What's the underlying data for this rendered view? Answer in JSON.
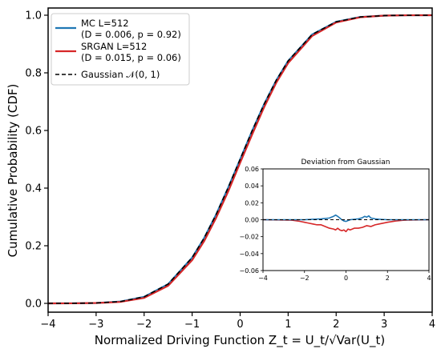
{
  "chart_data": [
    {
      "type": "line",
      "xlabel": "Normalized Driving Function Z_t = U_t/√Var(U_t)",
      "ylabel": "Cumulative Probability (CDF)",
      "xlim": [
        -4,
        4
      ],
      "ylim": [
        0.0,
        1.0
      ],
      "xticks": [
        -4,
        -3,
        -2,
        -1,
        0,
        1,
        2,
        3,
        4
      ],
      "yticks": [
        0.0,
        0.2,
        0.4,
        0.6,
        0.8,
        1.0
      ],
      "legend": {
        "location": "upper left",
        "entries": [
          {
            "line1": "MC L=512",
            "line2": "(D = 0.006, p = 0.92)",
            "color": "#1f77b4",
            "style": "solid"
          },
          {
            "line1": "SRGAN L=512",
            "line2": "(D = 0.015, p = 0.06)",
            "color": "#d62728",
            "style": "solid"
          },
          {
            "line1": "Gaussian 𝒩(0, 1)",
            "line2": "",
            "color": "#000000",
            "style": "dashed"
          }
        ]
      },
      "series": [
        {
          "name": "MC L=512",
          "color": "#1f77b4",
          "x": [
            -4,
            -3.5,
            -3,
            -2.5,
            -2,
            -1.5,
            -1,
            -0.75,
            -0.5,
            -0.25,
            0,
            0.25,
            0.5,
            0.75,
            1,
            1.5,
            2,
            2.5,
            3,
            3.5,
            4
          ],
          "y": [
            0.0,
            0.0002,
            0.0013,
            0.0062,
            0.0228,
            0.0668,
            0.1587,
            0.2266,
            0.3085,
            0.4013,
            0.5,
            0.5987,
            0.6915,
            0.7734,
            0.8413,
            0.9332,
            0.9772,
            0.9938,
            0.9987,
            0.9998,
            1.0
          ]
        },
        {
          "name": "SRGAN L=512",
          "color": "#d62728",
          "x": [
            -4,
            -3.5,
            -3,
            -2.5,
            -2,
            -1.5,
            -1,
            -0.75,
            -0.5,
            -0.25,
            0,
            0.25,
            0.5,
            0.75,
            1,
            1.5,
            2,
            2.5,
            3,
            3.5,
            4
          ],
          "y": [
            0.0,
            0.0002,
            0.0013,
            0.005,
            0.019,
            0.061,
            0.15,
            0.216,
            0.297,
            0.388,
            0.488,
            0.586,
            0.681,
            0.765,
            0.834,
            0.928,
            0.975,
            0.993,
            0.9987,
            0.9998,
            1.0
          ]
        },
        {
          "name": "Gaussian 𝒩(0, 1)",
          "color": "#000000",
          "x": [
            -4,
            -3.5,
            -3,
            -2.5,
            -2,
            -1.5,
            -1,
            -0.75,
            -0.5,
            -0.25,
            0,
            0.25,
            0.5,
            0.75,
            1,
            1.5,
            2,
            2.5,
            3,
            3.5,
            4
          ],
          "y": [
            0.0,
            0.0002,
            0.0013,
            0.0062,
            0.0228,
            0.0668,
            0.1587,
            0.2266,
            0.3085,
            0.4013,
            0.5,
            0.5987,
            0.6915,
            0.7734,
            0.8413,
            0.9332,
            0.9772,
            0.9938,
            0.9987,
            0.9998,
            1.0
          ]
        }
      ]
    },
    {
      "type": "line",
      "title": "Deviation from Gaussian",
      "xlim": [
        -4,
        4
      ],
      "ylim": [
        -0.06,
        0.06
      ],
      "xticks": [
        -4,
        -2,
        0,
        2,
        4
      ],
      "yticks": [
        -0.06,
        -0.04,
        -0.02,
        0.0,
        0.02,
        0.04,
        0.06
      ],
      "series": [
        {
          "name": "MC L=512",
          "color": "#1f77b4",
          "x": [
            -4,
            -2,
            -1.6,
            -1.2,
            -1.0,
            -0.8,
            -0.6,
            -0.5,
            -0.4,
            -0.3,
            -0.2,
            -0.1,
            0,
            0.1,
            0.2,
            0.4,
            0.6,
            0.8,
            0.9,
            1.0,
            1.1,
            1.2,
            1.4,
            1.6,
            2,
            4
          ],
          "y": [
            0,
            0,
            0.0005,
            0.001,
            0.0015,
            0.002,
            0.004,
            0.0055,
            0.004,
            0.002,
            0.0,
            -0.0015,
            -0.002,
            -0.001,
            0.0,
            0.0005,
            0.001,
            0.0025,
            0.004,
            0.003,
            0.0045,
            0.002,
            0.001,
            0.0005,
            0,
            0
          ]
        },
        {
          "name": "SRGAN L=512",
          "color": "#d62728",
          "x": [
            -4,
            -2.6,
            -2.2,
            -2.0,
            -1.8,
            -1.6,
            -1.4,
            -1.2,
            -1.0,
            -0.8,
            -0.6,
            -0.5,
            -0.4,
            -0.3,
            -0.2,
            -0.1,
            0,
            0.1,
            0.2,
            0.4,
            0.6,
            0.8,
            1.0,
            1.2,
            1.4,
            1.6,
            2.0,
            2.4,
            2.8,
            4
          ],
          "y": [
            0,
            -0.0005,
            -0.002,
            -0.003,
            -0.004,
            -0.005,
            -0.006,
            -0.006,
            -0.008,
            -0.01,
            -0.011,
            -0.012,
            -0.01,
            -0.012,
            -0.013,
            -0.012,
            -0.014,
            -0.011,
            -0.012,
            -0.01,
            -0.01,
            -0.009,
            -0.007,
            -0.008,
            -0.006,
            -0.005,
            -0.003,
            -0.0015,
            -0.0005,
            0
          ]
        },
        {
          "name": "Gaussian 𝒩(0, 1)",
          "color": "#000000",
          "x": [
            -4,
            4
          ],
          "y": [
            0,
            0
          ]
        }
      ]
    }
  ]
}
